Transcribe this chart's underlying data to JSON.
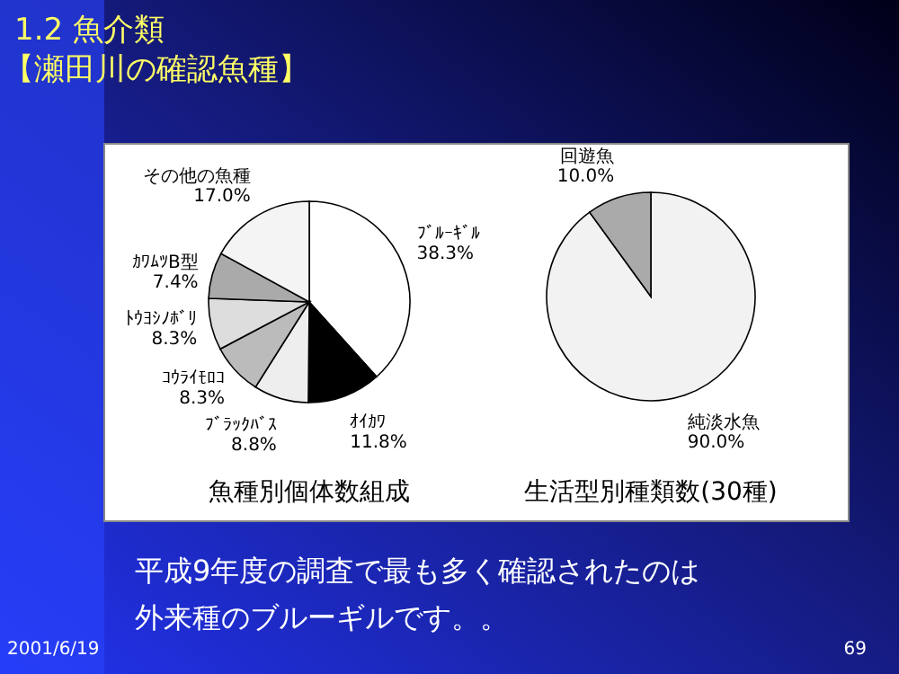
{
  "chart_data": [
    {
      "type": "other",
      "title": "1.2  魚介類",
      "subtitle": "【瀬田川の確認魚種】",
      "annotations": [
        "平成9年度の調査で最も多く確認されたのは",
        "外来種のブルーギルです。。",
        "2001/6/19",
        "69"
      ]
    },
    {
      "type": "pie",
      "title": "魚種別個体数組成",
      "categories": [
        "ﾌﾞﾙｰｷﾞﾙ",
        "ｵｲｶﾜ",
        "ﾌﾞﾗｯｸﾊﾞｽ",
        "ｺｳﾗｲﾓﾛｺ",
        "ﾄｳﾖｼﾉﾎﾞﾘ",
        "ｶﾜﾑﾂB型",
        "その他の魚種"
      ],
      "values": [
        38.3,
        11.8,
        8.8,
        8.3,
        8.3,
        7.4,
        17.0
      ],
      "colors": [
        "#ffffff",
        "#000000",
        "#eeeeee",
        "#bbbbbb",
        "#dddddd",
        "#aaaaaa",
        "#f4f4f4"
      ],
      "value_labels": [
        "38.3%",
        "11.8%",
        "8.8%",
        "8.3%",
        "8.3%",
        "7.4%",
        "17.0%"
      ]
    },
    {
      "type": "pie",
      "title": "生活型別種類数(30種)",
      "categories": [
        "純淡水魚",
        "回遊魚"
      ],
      "values": [
        90.0,
        10.0
      ],
      "colors": [
        "#f2f2f2",
        "#aaaaaa"
      ],
      "value_labels": [
        "90.0%",
        "10.0%"
      ]
    }
  ]
}
